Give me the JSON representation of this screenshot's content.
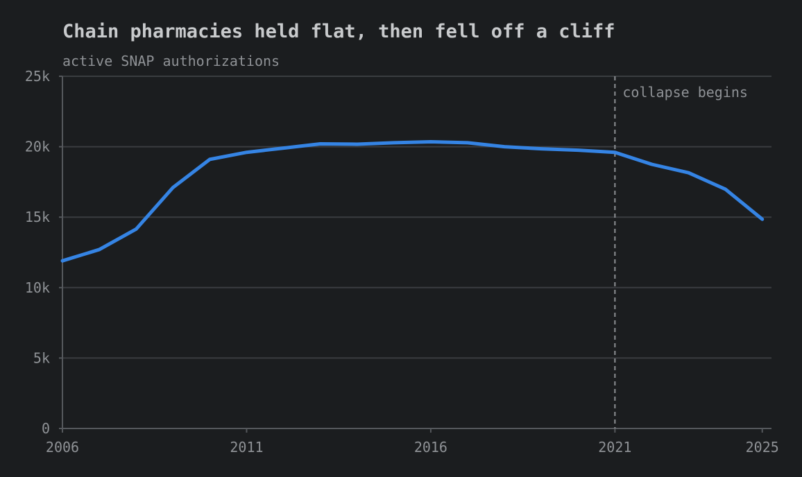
{
  "chart_data": {
    "type": "line",
    "title": "Chain pharmacies held flat, then fell off a cliff",
    "subtitle": "active SNAP authorizations",
    "x": [
      2006,
      2007,
      2008,
      2009,
      2010,
      2011,
      2012,
      2013,
      2014,
      2015,
      2016,
      2017,
      2018,
      2019,
      2020,
      2021,
      2022,
      2023,
      2024,
      2025
    ],
    "series": [
      {
        "name": "Chain pharmacies",
        "color": "#3584e4",
        "values": [
          11900,
          12700,
          14150,
          17100,
          19100,
          19600,
          19900,
          20200,
          20180,
          20280,
          20350,
          20280,
          20000,
          19850,
          19750,
          19600,
          18750,
          18150,
          16980,
          14850
        ]
      }
    ],
    "xlim": [
      2006,
      2025.25
    ],
    "xticks": [
      2006,
      2011,
      2016,
      2021,
      2025
    ],
    "ylim": [
      0,
      25000
    ],
    "yticks": [
      0,
      {
        "value": 5000,
        "label": "5k"
      },
      {
        "value": 10000,
        "label": "10k"
      },
      {
        "value": 15000,
        "label": "15k"
      },
      {
        "value": 20000,
        "label": "20k"
      },
      {
        "value": 25000,
        "label": "25k"
      }
    ],
    "grid": true,
    "annotations": [
      {
        "x": 2021,
        "text": "collapse begins"
      }
    ]
  }
}
